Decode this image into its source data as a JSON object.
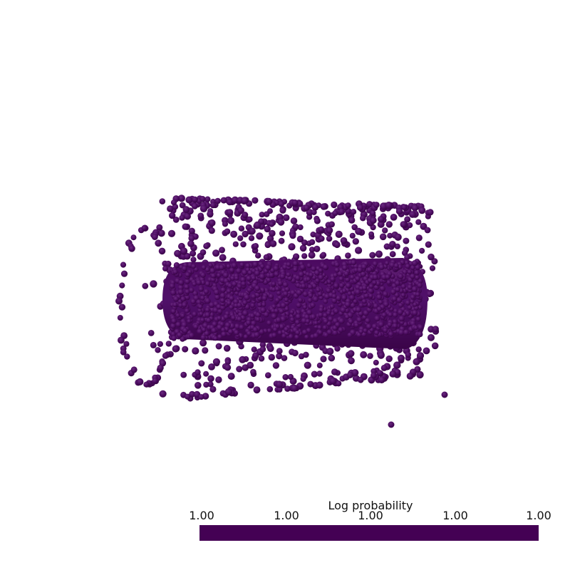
{
  "legend": {
    "title": "Log probability",
    "ticks": [
      "1.00",
      "1.00",
      "1.00",
      "1.00",
      "1.00"
    ],
    "bar_color": "#440154"
  },
  "render": {
    "point_color": "#440154",
    "point_highlight": "#5a1d6e",
    "background": "#ffffff"
  }
}
